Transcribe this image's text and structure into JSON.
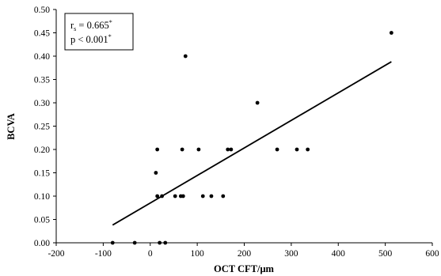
{
  "chart_data": {
    "type": "scatter",
    "xlabel": "OCT CFT/μm",
    "ylabel": "BCVA",
    "xlim": [
      -200,
      600
    ],
    "ylim": [
      0,
      0.5
    ],
    "x_ticks": [
      "-200",
      "-100",
      "0",
      "100",
      "200",
      "300",
      "400",
      "500",
      "600"
    ],
    "y_ticks": [
      "0.00",
      "0.05",
      "0.10",
      "0.15",
      "0.20",
      "0.25",
      "0.30",
      "0.35",
      "0.40",
      "0.45",
      "0.50"
    ],
    "grid": false,
    "points": [
      {
        "x": -80,
        "y": 0.0
      },
      {
        "x": -33,
        "y": 0.0
      },
      {
        "x": 20,
        "y": 0.0
      },
      {
        "x": 32,
        "y": 0.0
      },
      {
        "x": 12,
        "y": 0.15
      },
      {
        "x": 15,
        "y": 0.1
      },
      {
        "x": 25,
        "y": 0.1
      },
      {
        "x": 15,
        "y": 0.2
      },
      {
        "x": 53,
        "y": 0.1
      },
      {
        "x": 65,
        "y": 0.1
      },
      {
        "x": 70,
        "y": 0.1
      },
      {
        "x": 68,
        "y": 0.2
      },
      {
        "x": 75,
        "y": 0.4
      },
      {
        "x": 103,
        "y": 0.2
      },
      {
        "x": 112,
        "y": 0.1
      },
      {
        "x": 130,
        "y": 0.1
      },
      {
        "x": 155,
        "y": 0.1
      },
      {
        "x": 165,
        "y": 0.2
      },
      {
        "x": 172,
        "y": 0.2
      },
      {
        "x": 228,
        "y": 0.3
      },
      {
        "x": 270,
        "y": 0.2
      },
      {
        "x": 312,
        "y": 0.2
      },
      {
        "x": 335,
        "y": 0.2
      },
      {
        "x": 513,
        "y": 0.45
      }
    ],
    "trendline": {
      "x": [
        -80,
        513
      ],
      "y": [
        0.038,
        0.388
      ]
    },
    "annotation": {
      "r_main": "r",
      "r_sub": "s",
      "r_value": " = 0.665",
      "r_sup": "*",
      "p_text": "p < 0.001",
      "p_sup": "*"
    }
  }
}
